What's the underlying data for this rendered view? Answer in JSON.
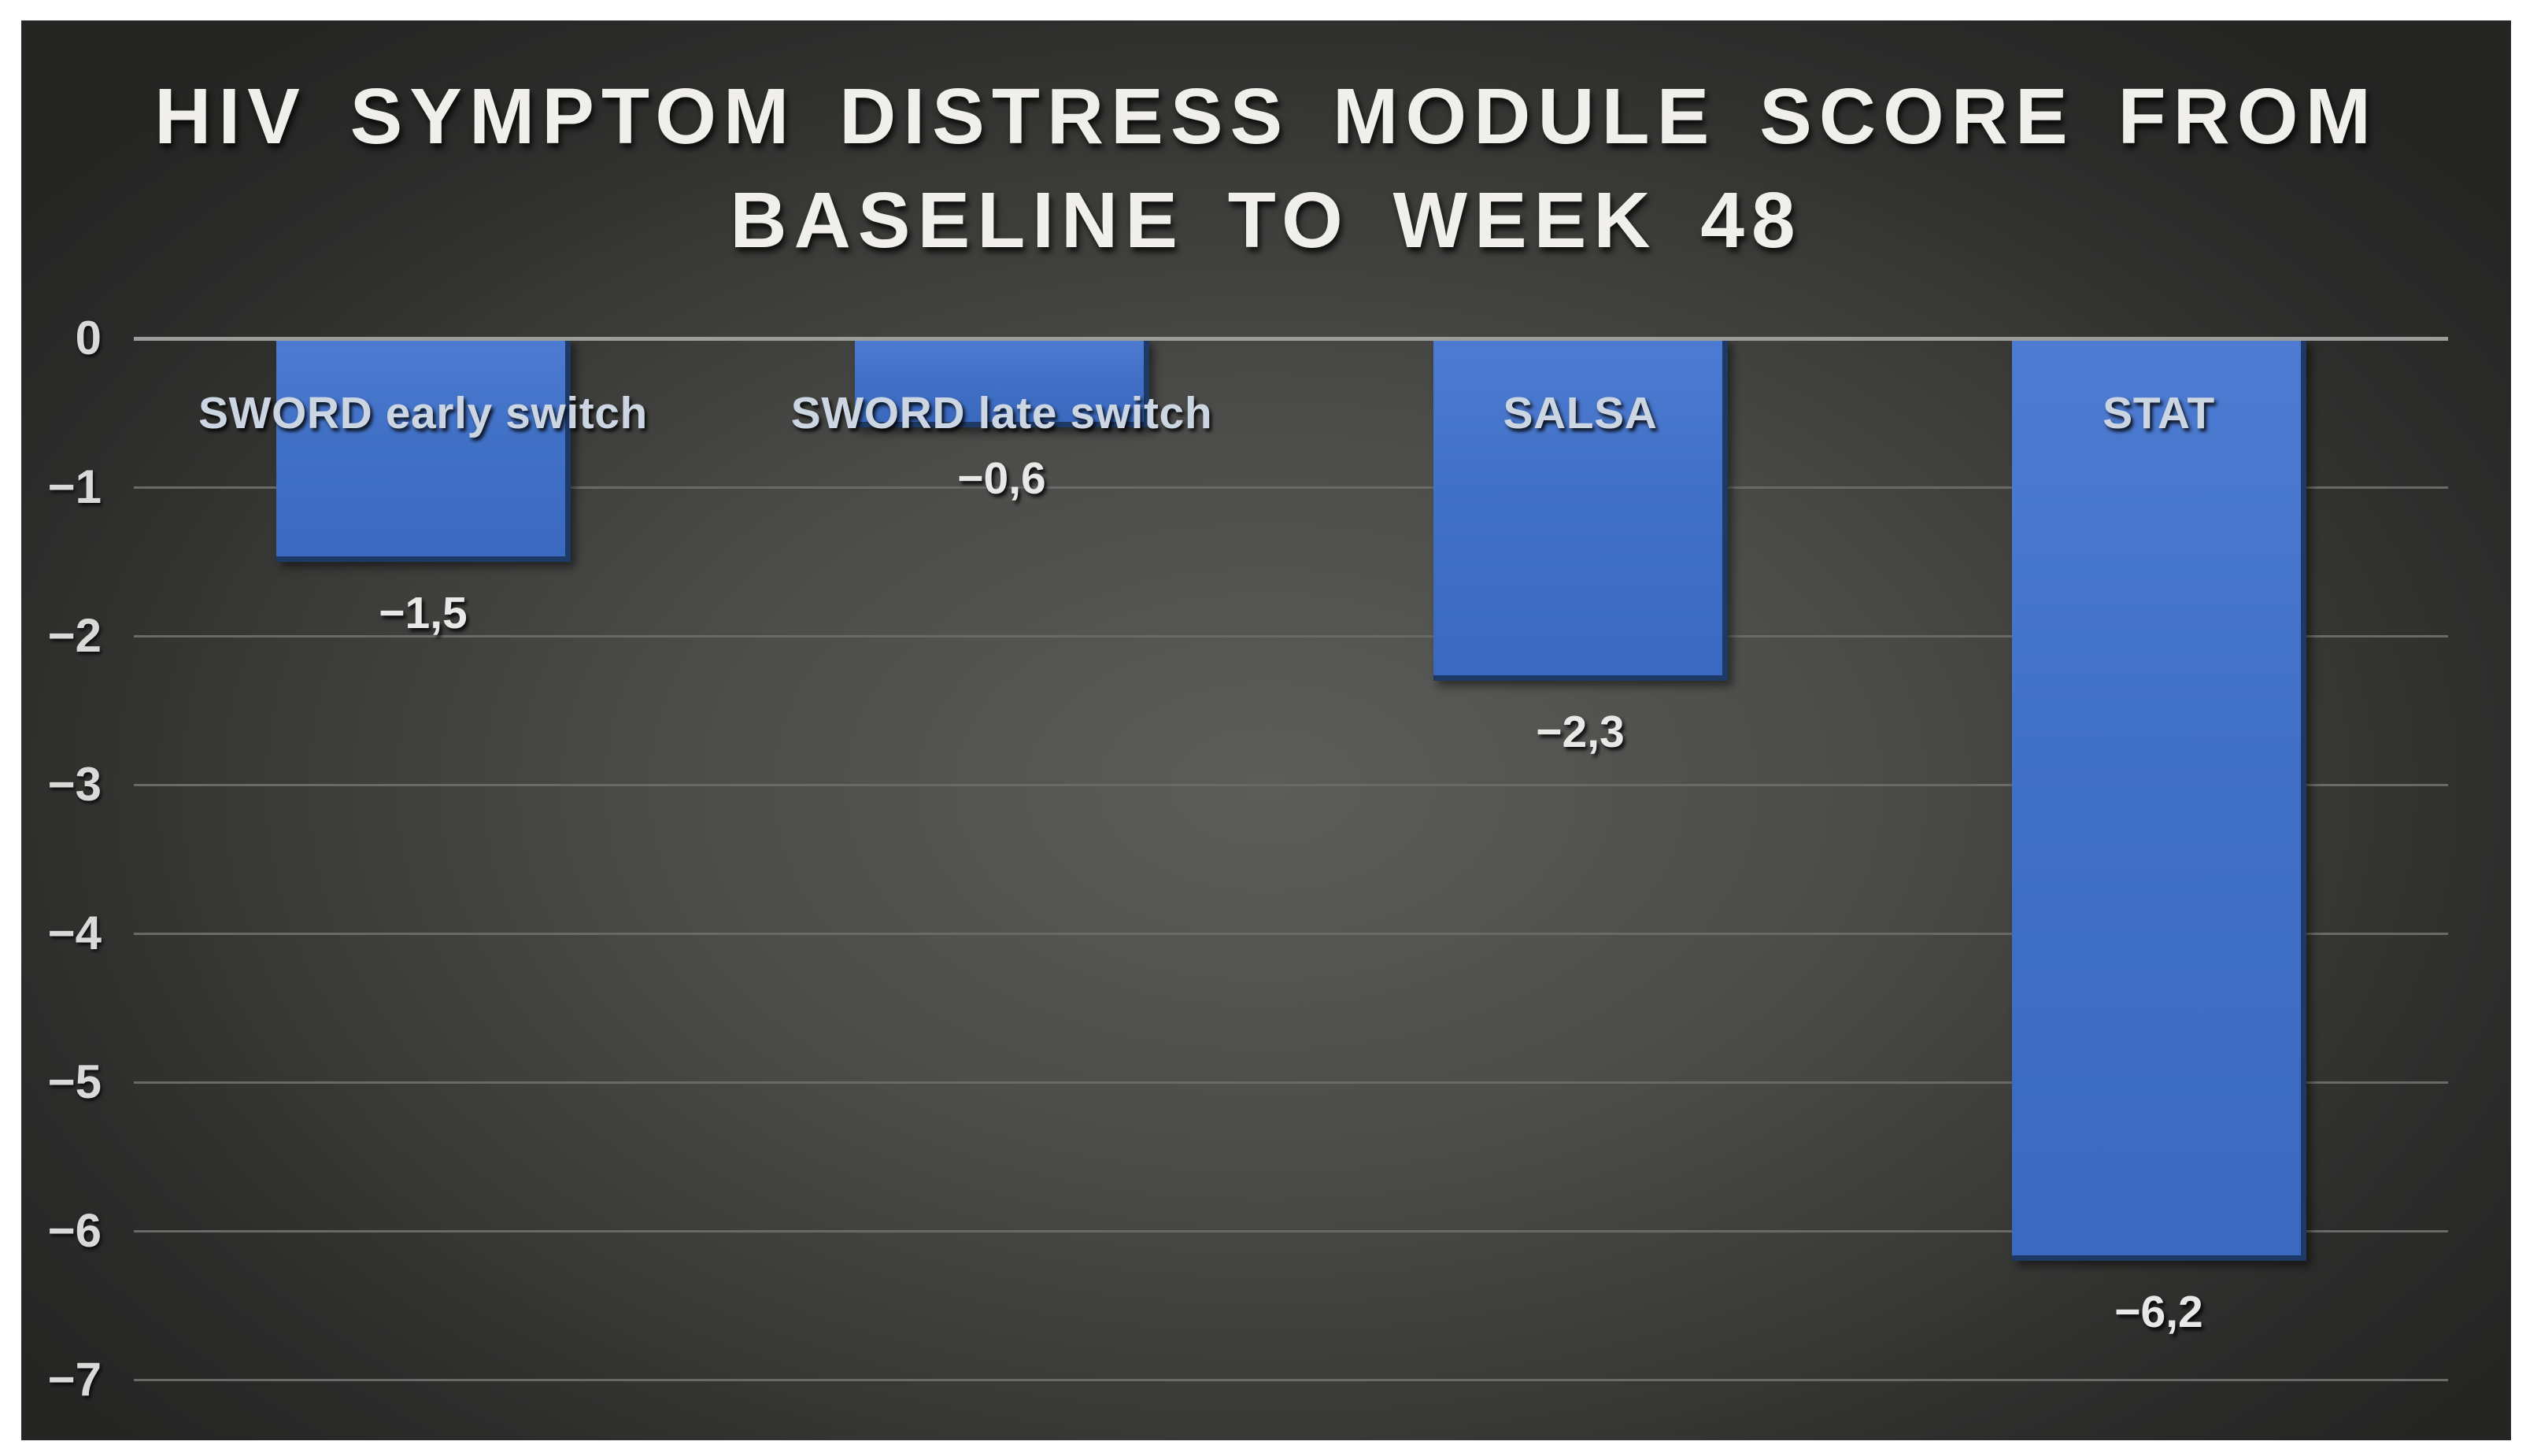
{
  "chart_data": {
    "type": "bar",
    "title": "HIV SYMPTOM DISTRESS MODULE SCORE FROM BASELINE TO WEEK 48",
    "title_lines": [
      "HIV SYMPTOM DISTRESS MODULE SCORE FROM",
      "BASELINE TO WEEK 48"
    ],
    "categories": [
      "SWORD early switch",
      "SWORD late switch",
      "SALSA",
      "STAT"
    ],
    "values": [
      -1.5,
      -0.6,
      -2.3,
      -6.2
    ],
    "value_labels": [
      "−1,5",
      "−0,6",
      "−2,3",
      "−6,2"
    ],
    "xlabel": "",
    "ylabel": "",
    "ylim": [
      -7,
      0
    ],
    "y_ticks": [
      0,
      -1,
      -2,
      -3,
      -4,
      -5,
      -6,
      -7
    ],
    "y_tick_labels": [
      "0",
      "−1",
      "−2",
      "−3",
      "−4",
      "−5",
      "−6",
      "−7"
    ],
    "grid": true,
    "legend": "none",
    "orientation": "vertical-negative",
    "colors": {
      "bar_fill_top": "#4d7bd2",
      "bar_fill_bottom": "#3a69bf",
      "bar_edge": "#1d3a66",
      "axis_line": "#9c9c9a",
      "gridline": "#696967",
      "tick_label": "#d9d9d7",
      "category_label": "#ccd5e2",
      "value_label": "#e8e8e6",
      "title": "#f1efec",
      "background_center": "#5c5c5a",
      "background_edge": "#252524",
      "page_border": "#ffffff"
    }
  }
}
